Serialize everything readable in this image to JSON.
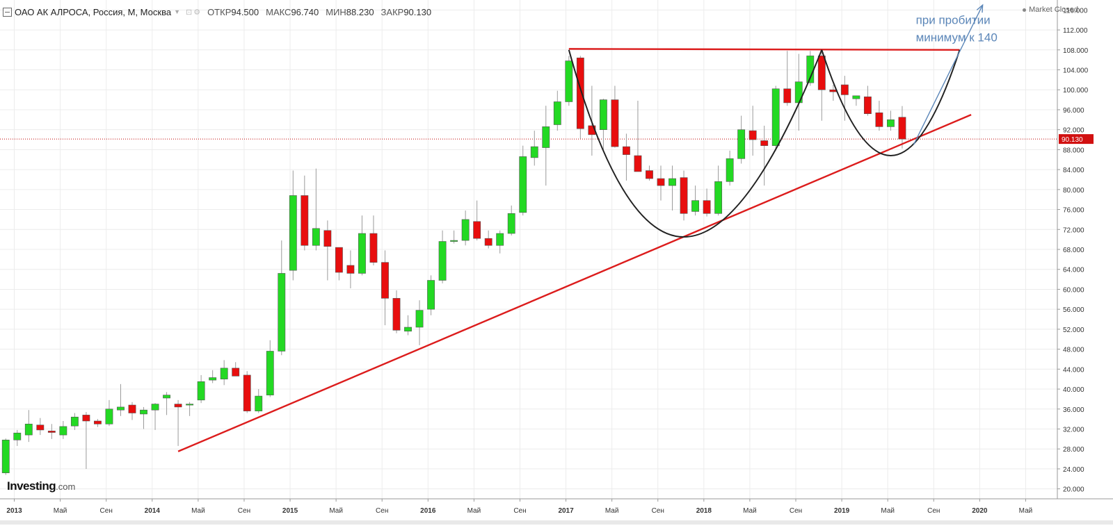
{
  "header": {
    "title": "ОАО АК АЛРОСА, Россия, М, Москва",
    "open_label": "ОТКР",
    "open_value": "94.500",
    "high_label": "МАКС",
    "high_value": "96.740",
    "low_label": "МИН",
    "low_value": "88.230",
    "close_label": "ЗАКР",
    "close_value": "90.130",
    "market_status": "Market Closed"
  },
  "logo": {
    "name": "Investing",
    "domain": ".com"
  },
  "annotation": {
    "line1": "при пробитии",
    "line2": "минимум к 140"
  },
  "price_marker": "90.130",
  "colors": {
    "up": "#23d923",
    "down": "#e80e0e",
    "trend": "#dc1c1c",
    "cup": "#222222",
    "arrow": "#5b86b8",
    "close_line": "#c00000"
  },
  "chart_data": {
    "type": "candlestick",
    "period": "monthly",
    "ylim": [
      18,
      118
    ],
    "y_ticks": [
      20,
      24,
      28,
      32,
      36,
      40,
      44,
      48,
      52,
      56,
      60,
      64,
      68,
      72,
      76,
      80,
      84,
      88,
      92,
      96,
      100,
      104,
      108,
      112,
      116
    ],
    "y_tick_labels": [
      "20.000",
      "24.000",
      "28.000",
      "32.000",
      "36.000",
      "40.000",
      "44.000",
      "48.000",
      "52.000",
      "56.000",
      "60.000",
      "64.000",
      "68.000",
      "72.000",
      "76.000",
      "80.000",
      "84.000",
      "88.000",
      "92.000",
      "96.000",
      "100.000",
      "104.000",
      "108.000",
      "112.000",
      "116.000"
    ],
    "x_range": [
      "2012-12",
      "2020-07"
    ],
    "x_ticks": [
      {
        "date": "2013-01",
        "label": "2013",
        "bold": true
      },
      {
        "date": "2013-05",
        "label": "Май",
        "bold": false
      },
      {
        "date": "2013-09",
        "label": "Сен",
        "bold": false
      },
      {
        "date": "2014-01",
        "label": "2014",
        "bold": true
      },
      {
        "date": "2014-05",
        "label": "Май",
        "bold": false
      },
      {
        "date": "2014-09",
        "label": "Сен",
        "bold": false
      },
      {
        "date": "2015-01",
        "label": "2015",
        "bold": true
      },
      {
        "date": "2015-05",
        "label": "Май",
        "bold": false
      },
      {
        "date": "2015-09",
        "label": "Сен",
        "bold": false
      },
      {
        "date": "2016-01",
        "label": "2016",
        "bold": true
      },
      {
        "date": "2016-05",
        "label": "Май",
        "bold": false
      },
      {
        "date": "2016-09",
        "label": "Сен",
        "bold": false
      },
      {
        "date": "2017-01",
        "label": "2017",
        "bold": true
      },
      {
        "date": "2017-05",
        "label": "Май",
        "bold": false
      },
      {
        "date": "2017-09",
        "label": "Сен",
        "bold": false
      },
      {
        "date": "2018-01",
        "label": "2018",
        "bold": true
      },
      {
        "date": "2018-05",
        "label": "Май",
        "bold": false
      },
      {
        "date": "2018-09",
        "label": "Сен",
        "bold": false
      },
      {
        "date": "2019-01",
        "label": "2019",
        "bold": true
      },
      {
        "date": "2019-05",
        "label": "Май",
        "bold": false
      },
      {
        "date": "2019-09",
        "label": "Сен",
        "bold": false
      },
      {
        "date": "2020-01",
        "label": "2020",
        "bold": true
      },
      {
        "date": "2020-05",
        "label": "Май",
        "bold": false
      }
    ],
    "last_close": 90.13,
    "candles": [
      {
        "date": "2012-12",
        "open": 23.2,
        "high": 30.1,
        "low": 22.8,
        "close": 29.8
      },
      {
        "date": "2013-01",
        "open": 29.8,
        "high": 31.8,
        "low": 28.6,
        "close": 31.2
      },
      {
        "date": "2013-02",
        "open": 30.8,
        "high": 35.8,
        "low": 29.4,
        "close": 33.0
      },
      {
        "date": "2013-03",
        "open": 32.8,
        "high": 34.2,
        "low": 30.8,
        "close": 31.8
      },
      {
        "date": "2013-04",
        "open": 31.6,
        "high": 33.0,
        "low": 30.0,
        "close": 31.3
      },
      {
        "date": "2013-05",
        "open": 30.8,
        "high": 33.6,
        "low": 30.0,
        "close": 32.5
      },
      {
        "date": "2013-06",
        "open": 32.6,
        "high": 35.2,
        "low": 31.8,
        "close": 34.4
      },
      {
        "date": "2013-07",
        "open": 34.8,
        "high": 35.4,
        "low": 24.0,
        "close": 33.6
      },
      {
        "date": "2013-08",
        "open": 33.6,
        "high": 34.0,
        "low": 32.4,
        "close": 33.0
      },
      {
        "date": "2013-09",
        "open": 33.0,
        "high": 37.8,
        "low": 32.6,
        "close": 36.0
      },
      {
        "date": "2013-10",
        "open": 35.8,
        "high": 41.0,
        "low": 34.6,
        "close": 36.4
      },
      {
        "date": "2013-11",
        "open": 36.8,
        "high": 37.4,
        "low": 33.8,
        "close": 35.2
      },
      {
        "date": "2013-12",
        "open": 35.0,
        "high": 36.4,
        "low": 32.0,
        "close": 35.8
      },
      {
        "date": "2014-01",
        "open": 35.8,
        "high": 37.2,
        "low": 31.8,
        "close": 37.0
      },
      {
        "date": "2014-02",
        "open": 38.2,
        "high": 39.4,
        "low": 34.8,
        "close": 38.8
      },
      {
        "date": "2014-03",
        "open": 37.0,
        "high": 37.8,
        "low": 28.6,
        "close": 36.4
      },
      {
        "date": "2014-04",
        "open": 36.8,
        "high": 37.4,
        "low": 34.6,
        "close": 37.0
      },
      {
        "date": "2014-05",
        "open": 37.8,
        "high": 42.8,
        "low": 37.2,
        "close": 41.5
      },
      {
        "date": "2014-06",
        "open": 41.8,
        "high": 43.8,
        "low": 41.2,
        "close": 42.3
      },
      {
        "date": "2014-07",
        "open": 42.0,
        "high": 45.8,
        "low": 40.8,
        "close": 44.2
      },
      {
        "date": "2014-08",
        "open": 44.2,
        "high": 45.4,
        "low": 42.6,
        "close": 42.6
      },
      {
        "date": "2014-09",
        "open": 42.8,
        "high": 43.6,
        "low": 35.2,
        "close": 35.6
      },
      {
        "date": "2014-10",
        "open": 35.6,
        "high": 40.0,
        "low": 35.2,
        "close": 38.6
      },
      {
        "date": "2014-11",
        "open": 38.8,
        "high": 49.8,
        "low": 38.4,
        "close": 47.6
      },
      {
        "date": "2014-12",
        "open": 47.6,
        "high": 69.8,
        "low": 46.8,
        "close": 63.2
      },
      {
        "date": "2015-01",
        "open": 63.8,
        "high": 83.8,
        "low": 61.8,
        "close": 78.8
      },
      {
        "date": "2015-02",
        "open": 78.8,
        "high": 82.8,
        "low": 67.8,
        "close": 68.8
      },
      {
        "date": "2015-03",
        "open": 68.8,
        "high": 84.2,
        "low": 67.8,
        "close": 72.2
      },
      {
        "date": "2015-04",
        "open": 71.8,
        "high": 73.8,
        "low": 61.8,
        "close": 68.6
      },
      {
        "date": "2015-05",
        "open": 68.4,
        "high": 68.4,
        "low": 61.8,
        "close": 63.4
      },
      {
        "date": "2015-06",
        "open": 64.8,
        "high": 67.8,
        "low": 60.2,
        "close": 63.2
      },
      {
        "date": "2015-07",
        "open": 63.2,
        "high": 74.8,
        "low": 62.8,
        "close": 71.2
      },
      {
        "date": "2015-08",
        "open": 71.2,
        "high": 74.8,
        "low": 64.8,
        "close": 65.4
      },
      {
        "date": "2015-09",
        "open": 65.4,
        "high": 67.8,
        "low": 52.8,
        "close": 58.2
      },
      {
        "date": "2015-10",
        "open": 58.2,
        "high": 59.8,
        "low": 51.2,
        "close": 51.8
      },
      {
        "date": "2015-11",
        "open": 51.6,
        "high": 54.8,
        "low": 50.8,
        "close": 52.4
      },
      {
        "date": "2015-12",
        "open": 52.4,
        "high": 57.8,
        "low": 48.8,
        "close": 55.8
      },
      {
        "date": "2016-01",
        "open": 56.0,
        "high": 62.8,
        "low": 54.8,
        "close": 61.8
      },
      {
        "date": "2016-02",
        "open": 61.8,
        "high": 71.8,
        "low": 61.2,
        "close": 69.6
      },
      {
        "date": "2016-03",
        "open": 69.6,
        "high": 71.8,
        "low": 69.2,
        "close": 69.8
      },
      {
        "date": "2016-04",
        "open": 69.8,
        "high": 75.8,
        "low": 68.8,
        "close": 74.0
      },
      {
        "date": "2016-05",
        "open": 73.6,
        "high": 77.8,
        "low": 69.8,
        "close": 70.2
      },
      {
        "date": "2016-06",
        "open": 70.2,
        "high": 71.8,
        "low": 68.2,
        "close": 68.8
      },
      {
        "date": "2016-07",
        "open": 68.8,
        "high": 71.8,
        "low": 67.2,
        "close": 71.2
      },
      {
        "date": "2016-08",
        "open": 71.2,
        "high": 76.8,
        "low": 70.8,
        "close": 75.2
      },
      {
        "date": "2016-09",
        "open": 75.4,
        "high": 88.8,
        "low": 74.8,
        "close": 86.6
      },
      {
        "date": "2016-10",
        "open": 86.4,
        "high": 91.8,
        "low": 84.8,
        "close": 88.6
      },
      {
        "date": "2016-11",
        "open": 88.4,
        "high": 96.8,
        "low": 80.8,
        "close": 92.6
      },
      {
        "date": "2016-12",
        "open": 93.0,
        "high": 99.8,
        "low": 91.8,
        "close": 97.6
      },
      {
        "date": "2017-01",
        "open": 97.6,
        "high": 106.8,
        "low": 96.8,
        "close": 105.8
      },
      {
        "date": "2017-02",
        "open": 106.4,
        "high": 106.8,
        "low": 90.2,
        "close": 92.2
      },
      {
        "date": "2017-03",
        "open": 92.8,
        "high": 100.8,
        "low": 86.8,
        "close": 91.0
      },
      {
        "date": "2017-04",
        "open": 92.0,
        "high": 98.2,
        "low": 87.8,
        "close": 98.0
      },
      {
        "date": "2017-05",
        "open": 98.0,
        "high": 100.8,
        "low": 88.4,
        "close": 88.6
      },
      {
        "date": "2017-06",
        "open": 88.6,
        "high": 91.2,
        "low": 81.8,
        "close": 87.0
      },
      {
        "date": "2017-07",
        "open": 86.8,
        "high": 97.8,
        "low": 83.8,
        "close": 83.6
      },
      {
        "date": "2017-08",
        "open": 83.8,
        "high": 84.8,
        "low": 81.8,
        "close": 82.2
      },
      {
        "date": "2017-09",
        "open": 82.2,
        "high": 84.8,
        "low": 77.8,
        "close": 80.8
      },
      {
        "date": "2017-10",
        "open": 80.8,
        "high": 84.8,
        "low": 75.8,
        "close": 82.2
      },
      {
        "date": "2017-11",
        "open": 82.4,
        "high": 83.8,
        "low": 73.8,
        "close": 75.2
      },
      {
        "date": "2017-12",
        "open": 75.6,
        "high": 80.8,
        "low": 74.8,
        "close": 77.8
      },
      {
        "date": "2018-01",
        "open": 77.8,
        "high": 80.2,
        "low": 74.6,
        "close": 75.2
      },
      {
        "date": "2018-02",
        "open": 75.2,
        "high": 84.8,
        "low": 74.8,
        "close": 81.6
      },
      {
        "date": "2018-03",
        "open": 81.6,
        "high": 87.8,
        "low": 80.8,
        "close": 86.2
      },
      {
        "date": "2018-04",
        "open": 86.2,
        "high": 94.8,
        "low": 85.2,
        "close": 92.0
      },
      {
        "date": "2018-05",
        "open": 91.8,
        "high": 96.8,
        "low": 86.8,
        "close": 90.0
      },
      {
        "date": "2018-06",
        "open": 89.8,
        "high": 92.8,
        "low": 80.8,
        "close": 88.8
      },
      {
        "date": "2018-07",
        "open": 88.8,
        "high": 100.8,
        "low": 87.8,
        "close": 100.2
      },
      {
        "date": "2018-08",
        "open": 100.2,
        "high": 107.8,
        "low": 96.8,
        "close": 97.4
      },
      {
        "date": "2018-09",
        "open": 97.4,
        "high": 107.2,
        "low": 91.8,
        "close": 101.6
      },
      {
        "date": "2018-10",
        "open": 101.4,
        "high": 107.8,
        "low": 100.8,
        "close": 106.8
      },
      {
        "date": "2018-11",
        "open": 106.8,
        "high": 107.8,
        "low": 93.8,
        "close": 100.0
      },
      {
        "date": "2018-12",
        "open": 100.0,
        "high": 101.0,
        "low": 97.8,
        "close": 99.6
      },
      {
        "date": "2019-01",
        "open": 101.0,
        "high": 102.8,
        "low": 93.8,
        "close": 99.0
      },
      {
        "date": "2019-02",
        "open": 98.2,
        "high": 98.8,
        "low": 96.8,
        "close": 98.8
      },
      {
        "date": "2019-03",
        "open": 98.6,
        "high": 100.8,
        "low": 94.8,
        "close": 95.2
      },
      {
        "date": "2019-04",
        "open": 95.4,
        "high": 97.8,
        "low": 91.8,
        "close": 92.6
      },
      {
        "date": "2019-05",
        "open": 92.6,
        "high": 95.8,
        "low": 91.8,
        "close": 94.0
      },
      {
        "date": "2019-06",
        "open": 94.5,
        "high": 96.74,
        "low": 88.23,
        "close": 90.13
      }
    ]
  },
  "drawings": {
    "support_line": {
      "from": {
        "date": "2014-03",
        "price": 27.5
      },
      "to": {
        "date": "2019-12",
        "price": 95.0
      }
    },
    "resistance_line": {
      "from": {
        "date": "2017-01",
        "price": 108.2
      },
      "to": {
        "date": "2019-11",
        "price": 108.0
      }
    },
    "big_cup": {
      "from": {
        "date": "2017-01",
        "price": 108.0
      },
      "bottom": {
        "date": "2017-11",
        "price": 70.5
      },
      "to": {
        "date": "2018-11",
        "price": 108.0
      }
    },
    "small_cup": {
      "from": {
        "date": "2018-11",
        "price": 108.0
      },
      "bottom": {
        "date": "2019-05",
        "price": 86.8
      },
      "to": {
        "date": "2019-11",
        "price": 108.0
      }
    },
    "arrow": {
      "from": {
        "date": "2019-07",
        "price": 89.0
      },
      "to": {
        "date": "2020-01",
        "price": 117.0
      }
    }
  }
}
